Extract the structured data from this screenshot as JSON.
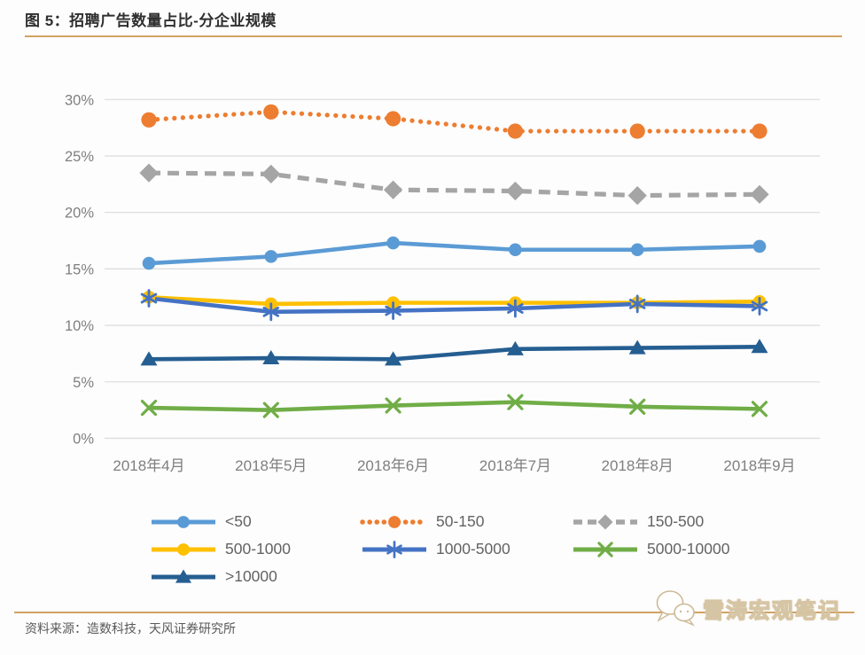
{
  "header": {
    "title": "图 5：招聘广告数量占比-分企业规模"
  },
  "chart_data": {
    "type": "line",
    "title": "图 5：招聘广告数量占比-分企业规模",
    "categories": [
      "2018年4月",
      "2018年5月",
      "2018年6月",
      "2018年7月",
      "2018年8月",
      "2018年9月"
    ],
    "xlabel": "",
    "ylabel": "",
    "unit": "%",
    "ylim": [
      0,
      30
    ],
    "ytick_step": 5,
    "ytick_labels": [
      "0%",
      "5%",
      "10%",
      "15%",
      "20%",
      "25%",
      "30%"
    ],
    "grid": "horizontal",
    "legend_position": "bottom",
    "series": [
      {
        "name": "<50",
        "color": "#5B9BD5",
        "line": "solid",
        "marker": "circle",
        "values": [
          15.5,
          16.1,
          17.3,
          16.7,
          16.7,
          17.0
        ]
      },
      {
        "name": "50-150",
        "color": "#ED7D31",
        "line": "dotted",
        "marker": "circle",
        "values": [
          28.2,
          28.9,
          28.3,
          27.2,
          27.2,
          27.2
        ]
      },
      {
        "name": "150-500",
        "color": "#A5A5A5",
        "line": "dashed",
        "marker": "diamond",
        "values": [
          23.5,
          23.4,
          22.0,
          21.9,
          21.5,
          21.6
        ]
      },
      {
        "name": "500-1000",
        "color": "#FFC000",
        "line": "solid",
        "marker": "circle",
        "values": [
          12.5,
          11.9,
          12.0,
          12.0,
          12.0,
          12.1
        ]
      },
      {
        "name": "1000-5000",
        "color": "#4472C4",
        "line": "solid",
        "marker": "asterisk",
        "values": [
          12.4,
          11.2,
          11.3,
          11.5,
          11.9,
          11.7
        ]
      },
      {
        "name": "5000-10000",
        "color": "#70AD47",
        "line": "solid",
        "marker": "x",
        "values": [
          2.7,
          2.5,
          2.9,
          3.2,
          2.8,
          2.6
        ]
      },
      {
        "name": ">10000",
        "color": "#255E91",
        "line": "solid",
        "marker": "triangle",
        "values": [
          7.0,
          7.1,
          7.0,
          7.9,
          8.0,
          8.1
        ]
      }
    ]
  },
  "footer": {
    "source": "资料来源：造数科技，天风证券研究所",
    "watermark": "雪涛宏观笔记"
  },
  "colors": {
    "accent_rule": "#D2A263",
    "gridline": "#DBDBDB",
    "axis_text": "#7F7F7F",
    "legend_text": "#636363",
    "title_text": "#2F2F2F",
    "source_text": "#595959"
  }
}
